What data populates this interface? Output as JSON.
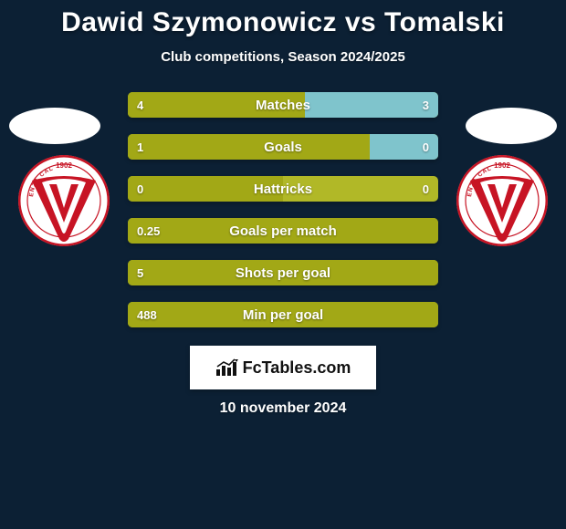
{
  "background_color": "#0c2034",
  "title": {
    "text": "Dawid Szymonowicz vs Tomalski",
    "color": "#ffffff",
    "fontsize": 30
  },
  "subtitle": {
    "text": "Club competitions, Season 2024/2025",
    "color": "#ffffff",
    "fontsize": 15
  },
  "date": {
    "text": "10 november 2024",
    "color": "#ffffff",
    "fontsize": 16
  },
  "branding": {
    "label": "FcTables.com",
    "bg": "#ffffff",
    "text_color": "#111111"
  },
  "avatar_color": "#ffffff",
  "club_badge": {
    "year": "1902",
    "bg": "#ffffff",
    "ring": "#c71424",
    "v_color": "#c71424",
    "text_color": "#c71424"
  },
  "bars": {
    "track_left": "#a2a816",
    "track_right": "#b1b827",
    "highlight": "#7fc4cc",
    "label_color": "#ffffff",
    "value_color": "#ffffff",
    "rows": [
      {
        "label": "Matches",
        "left_value": "4",
        "right_value": "3",
        "left_pct": 57,
        "right_fill": true
      },
      {
        "label": "Goals",
        "left_value": "1",
        "right_value": "0",
        "left_pct": 78,
        "right_fill": true
      },
      {
        "label": "Hattricks",
        "left_value": "0",
        "right_value": "0",
        "left_pct": 50,
        "right_fill": false
      },
      {
        "label": "Goals per match",
        "left_value": "0.25",
        "right_value": "",
        "left_pct": 100,
        "right_fill": false
      },
      {
        "label": "Shots per goal",
        "left_value": "5",
        "right_value": "",
        "left_pct": 100,
        "right_fill": false
      },
      {
        "label": "Min per goal",
        "left_value": "488",
        "right_value": "",
        "left_pct": 100,
        "right_fill": false
      }
    ]
  }
}
